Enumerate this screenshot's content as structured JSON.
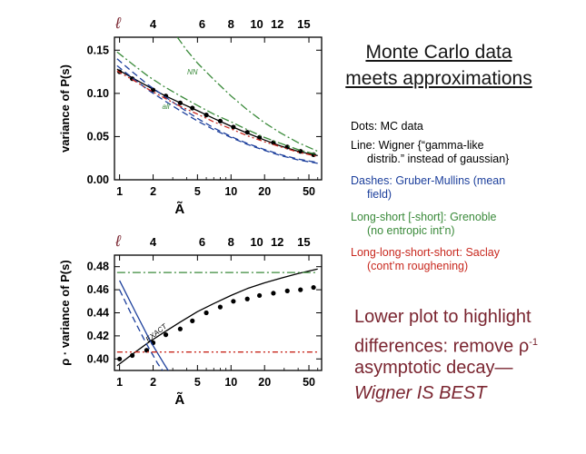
{
  "slide": {
    "title_line1": "Monte Carlo data",
    "title_line2": "meets approximations",
    "legend": {
      "dots": "Dots: MC data",
      "line_a": "Line: Wigner {“gamma-like",
      "line_b": "distrib.” instead of gaussian}",
      "dashes_a": "Dashes: Gruber-Mullins (mean",
      "dashes_b": "field)",
      "longshort_a": "Long-short [-short]: Grenoble",
      "longshort_b": "(no entropic int’n)",
      "lls_a": "Long-long-short-short: Saclay",
      "lls_b": "(cont’m roughening)"
    },
    "note": {
      "line1": "Lower plot to highlight",
      "line2_pre": "differences: remove ",
      "rho": "ρ",
      "sup": "-1",
      "line3": "asymptotic decay—",
      "line4": "Wigner IS BEST"
    },
    "colors": {
      "title": "#161616",
      "black": "#000000",
      "blue": "#1c3f9c",
      "green": "#3a8a3a",
      "red": "#c8281e",
      "note": "#7a2530"
    }
  },
  "chart_data": [
    {
      "type": "line",
      "xscale": "log",
      "xlim": [
        0.9,
        65
      ],
      "ylim": [
        0,
        0.165
      ],
      "ylabel": "variance of P(s)",
      "xlabel": "Ã",
      "xticks": [
        1,
        2,
        5,
        10,
        20,
        50
      ],
      "xtick_labels": [
        "1",
        "2",
        "5",
        "10",
        "20",
        "50"
      ],
      "yticks": [
        0,
        0.05,
        0.1,
        0.15
      ],
      "ytick_labels": [
        "0.00",
        "0.05",
        "0.10",
        "0.15"
      ],
      "top_axis_label": "ℓ",
      "top_ticks": [
        {
          "label": "4",
          "x": 2
        },
        {
          "label": "6",
          "x": 5.5
        },
        {
          "label": "8",
          "x": 10
        },
        {
          "label": "10",
          "x": 17
        },
        {
          "label": "12",
          "x": 26
        },
        {
          "label": "15",
          "x": 45
        }
      ],
      "annotations": [
        {
          "text": "NN",
          "x": 4.5,
          "y": 0.122,
          "color": "#3a8a3a"
        },
        {
          "text": "all",
          "x": 2.6,
          "y": 0.082,
          "color": "#3a8a3a"
        }
      ],
      "series": [
        {
          "name": "MC data",
          "style": "dots",
          "color": "#000000",
          "x": [
            1,
            1.3,
            2,
            2.6,
            3.5,
            4.5,
            6,
            8,
            10.5,
            14,
            18,
            24,
            32,
            42,
            55
          ],
          "y": [
            0.125,
            0.117,
            0.104,
            0.097,
            0.089,
            0.083,
            0.075,
            0.068,
            0.061,
            0.055,
            0.049,
            0.043,
            0.038,
            0.033,
            0.029
          ]
        },
        {
          "name": "Wigner",
          "style": "solid",
          "color": "#000000",
          "x": [
            0.95,
            1.3,
            1.8,
            2.5,
            3.5,
            5,
            7,
            10,
            14,
            20,
            28,
            40,
            60
          ],
          "y": [
            0.128,
            0.118,
            0.108,
            0.098,
            0.089,
            0.08,
            0.071,
            0.062,
            0.054,
            0.046,
            0.039,
            0.033,
            0.028
          ]
        },
        {
          "name": "Gruber-Mullins",
          "style": "dashed",
          "color": "#1c3f9c",
          "x": [
            0.95,
            1.3,
            1.8,
            2.5,
            3.5,
            5,
            7,
            10,
            14,
            20,
            28,
            40,
            60
          ],
          "y": [
            0.14,
            0.125,
            0.11,
            0.097,
            0.084,
            0.071,
            0.06,
            0.05,
            0.042,
            0.035,
            0.029,
            0.024,
            0.02
          ]
        },
        {
          "name": "Gruber-Mullins (lower)",
          "style": "dashed",
          "color": "#1c3f9c",
          "x": [
            0.95,
            1.3,
            1.8,
            2.5,
            3.5,
            5,
            7,
            10,
            14,
            20,
            28,
            40,
            60
          ],
          "y": [
            0.132,
            0.118,
            0.104,
            0.092,
            0.08,
            0.068,
            0.058,
            0.049,
            0.041,
            0.034,
            0.028,
            0.023,
            0.019
          ]
        },
        {
          "name": "Grenoble NN",
          "style": "dashdot",
          "color": "#3a8a3a",
          "x": [
            3.3,
            4,
            5,
            7,
            10,
            14,
            20,
            28,
            40,
            60
          ],
          "y": [
            0.165,
            0.15,
            0.135,
            0.116,
            0.097,
            0.081,
            0.066,
            0.054,
            0.043,
            0.033
          ]
        },
        {
          "name": "Grenoble all",
          "style": "dashdot",
          "color": "#3a8a3a",
          "x": [
            0.95,
            1.3,
            1.8,
            2.5,
            3.5,
            5,
            7,
            10,
            14,
            20,
            28,
            40,
            60
          ],
          "y": [
            0.148,
            0.134,
            0.12,
            0.108,
            0.097,
            0.086,
            0.076,
            0.067,
            0.058,
            0.049,
            0.042,
            0.035,
            0.029
          ]
        },
        {
          "name": "Saclay",
          "style": "dashdot2",
          "color": "#c8281e",
          "x": [
            0.95,
            1.3,
            1.8,
            2.5,
            3.5,
            5,
            7,
            10,
            14,
            20,
            28,
            40,
            60
          ],
          "y": [
            0.126,
            0.116,
            0.105,
            0.095,
            0.085,
            0.076,
            0.067,
            0.059,
            0.051,
            0.044,
            0.038,
            0.032,
            0.027
          ]
        }
      ]
    },
    {
      "type": "line",
      "xscale": "log",
      "xlim": [
        0.9,
        65
      ],
      "ylim": [
        0.39,
        0.49
      ],
      "ylabel": "ρ · variance of  P(s)",
      "xlabel": "Ã",
      "xticks": [
        1,
        2,
        5,
        10,
        20,
        50
      ],
      "xtick_labels": [
        "1",
        "2",
        "5",
        "10",
        "20",
        "50"
      ],
      "yticks": [
        0.4,
        0.42,
        0.44,
        0.46,
        0.48
      ],
      "ytick_labels": [
        "0.40",
        "0.42",
        "0.44",
        "0.46",
        "0.48"
      ],
      "top_axis_label": "ℓ",
      "top_ticks": [
        {
          "label": "4",
          "x": 2
        },
        {
          "label": "6",
          "x": 5.5
        },
        {
          "label": "8",
          "x": 10
        },
        {
          "label": "10",
          "x": 17
        },
        {
          "label": "12",
          "x": 26
        },
        {
          "label": "15",
          "x": 45
        }
      ],
      "annotations": [
        {
          "text": "EXACT",
          "x": 2.2,
          "y": 0.421,
          "color": "#000000"
        }
      ],
      "series": [
        {
          "name": "MC data",
          "style": "dots",
          "color": "#000000",
          "x": [
            1,
            1.3,
            1.75,
            2,
            2.6,
            3.5,
            4.5,
            6,
            8,
            10.5,
            14,
            18,
            24,
            32,
            42,
            55
          ],
          "y": [
            0.4,
            0.403,
            0.4075,
            0.414,
            0.421,
            0.426,
            0.433,
            0.44,
            0.445,
            0.45,
            0.452,
            0.455,
            0.457,
            0.459,
            0.46,
            0.462
          ]
        },
        {
          "name": "Wigner",
          "style": "solid",
          "color": "#000000",
          "x": [
            0.95,
            1.3,
            1.8,
            2.5,
            3.5,
            5,
            7,
            10,
            14,
            20,
            28,
            40,
            60
          ],
          "y": [
            0.394,
            0.404,
            0.414,
            0.423,
            0.432,
            0.441,
            0.448,
            0.455,
            0.461,
            0.466,
            0.47,
            0.474,
            0.478
          ]
        },
        {
          "name": "Gruber-Mullins",
          "style": "dashed",
          "color": "#1c3f9c",
          "x": [
            1.0,
            1.3,
            1.7,
            2.2,
            2.6
          ],
          "y": [
            0.46,
            0.437,
            0.415,
            0.396,
            0.386
          ]
        },
        {
          "name": "Gruber-Mullins (solid)",
          "style": "solid",
          "color": "#1c3f9c",
          "x": [
            1.0,
            1.4,
            1.9,
            2.5,
            2.9
          ],
          "y": [
            0.468,
            0.44,
            0.415,
            0.396,
            0.386
          ]
        },
        {
          "name": "Grenoble",
          "style": "dashdot",
          "color": "#3a8a3a",
          "x": [
            0.95,
            60
          ],
          "y": [
            0.475,
            0.475
          ]
        },
        {
          "name": "Saclay",
          "style": "dashdot2",
          "color": "#c8281e",
          "x": [
            0.95,
            60
          ],
          "y": [
            0.406,
            0.406
          ]
        }
      ]
    }
  ]
}
